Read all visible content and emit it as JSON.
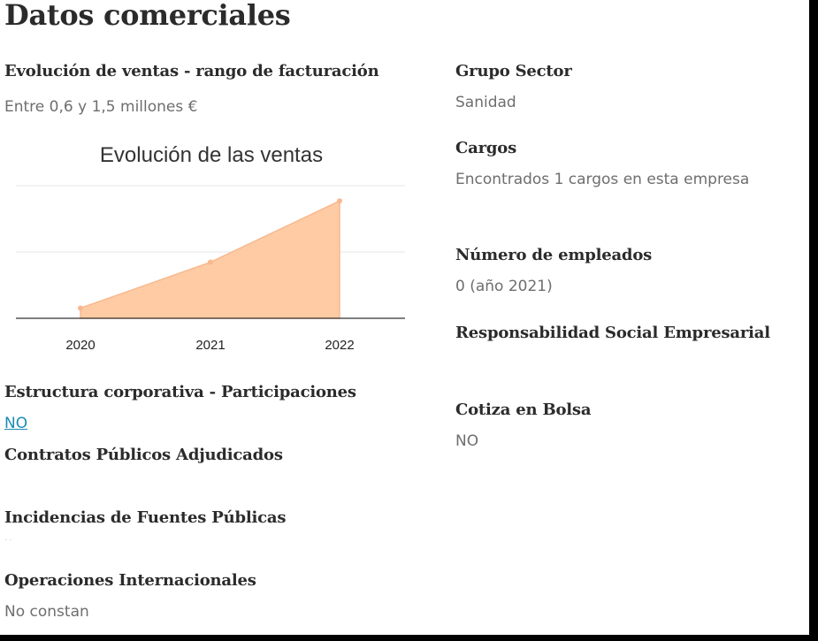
{
  "section": {
    "title": "Datos comerciales"
  },
  "left": {
    "sales": {
      "heading": "Evolución de ventas - rango de facturación",
      "value": "Entre 0,6 y 1,5 millones €"
    },
    "structure": {
      "heading": "Estructura corporativa - Participaciones",
      "value": "NO"
    },
    "contracts": {
      "heading": "Contratos Públicos Adjudicados"
    },
    "incidents": {
      "heading": "Incidencias de Fuentes Públicas"
    },
    "intl": {
      "heading": "Operaciones Internacionales",
      "value": "No constan"
    }
  },
  "right": {
    "sector": {
      "heading": "Grupo Sector",
      "value": "Sanidad"
    },
    "cargos": {
      "heading": "Cargos",
      "value": "Encontrados 1 cargos en esta empresa"
    },
    "employees": {
      "heading": "Número de empleados",
      "value": "0 (año 2021)"
    },
    "rse": {
      "heading": "Responsabilidad Social Empresarial"
    },
    "bolsa": {
      "heading": "Cotiza en Bolsa",
      "value": "NO"
    }
  },
  "chart_data": {
    "type": "area",
    "title": "Evolución de las ventas",
    "categories": [
      "2020",
      "2021",
      "2022"
    ],
    "series": [
      {
        "values": [
          0.1,
          0.55,
          1.15
        ]
      }
    ],
    "ylim": [
      0,
      1.3
    ],
    "grid": true,
    "fill_color": "#ffcba4",
    "line_color": "#f7b98e",
    "ytick_labels_shown": false
  }
}
